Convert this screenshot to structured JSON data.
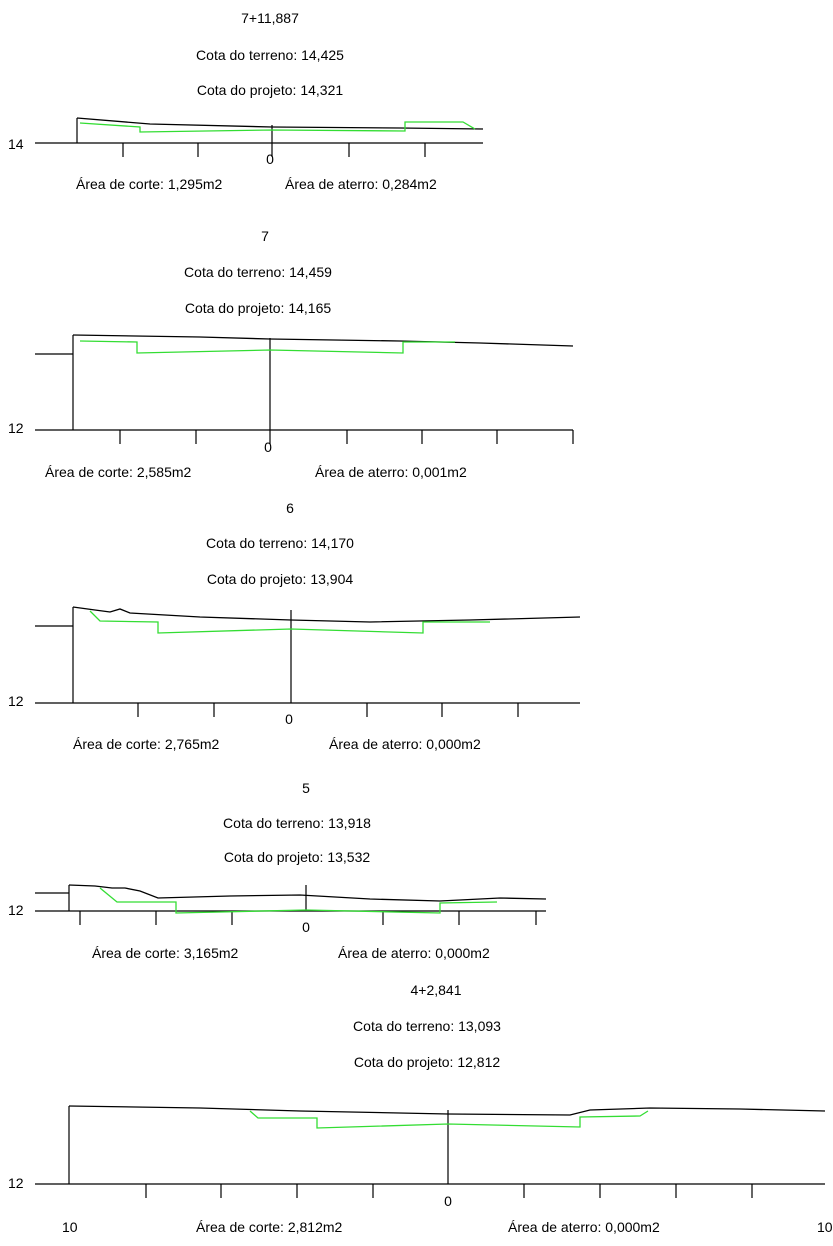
{
  "sections": [
    {
      "station": "7+11,887",
      "terrain_label": "Cota do terreno: 14,425",
      "design_label": "Cota do projeto: 14,321",
      "base_elevation": "14",
      "center_label": "0",
      "left_offset_label": "",
      "right_offset_label": "",
      "cut_area": "Área de corte: 1,295m2",
      "fill_area": "Área de aterro: 0,284m2"
    },
    {
      "station": "7",
      "terrain_label": "Cota do terreno: 14,459",
      "design_label": "Cota do projeto: 14,165",
      "base_elevation": "12",
      "center_label": "0",
      "left_offset_label": "",
      "right_offset_label": "",
      "cut_area": "Área de corte: 2,585m2",
      "fill_area": "Área de aterro: 0,001m2"
    },
    {
      "station": "6",
      "terrain_label": "Cota do terreno: 14,170",
      "design_label": "Cota do projeto: 13,904",
      "base_elevation": "12",
      "center_label": "0",
      "left_offset_label": "",
      "right_offset_label": "",
      "cut_area": "Área de corte: 2,765m2",
      "fill_area": "Área de aterro: 0,000m2"
    },
    {
      "station": "5",
      "terrain_label": "Cota do terreno: 13,918",
      "design_label": "Cota do projeto: 13,532",
      "base_elevation": "12",
      "center_label": "0",
      "left_offset_label": "",
      "right_offset_label": "",
      "cut_area": "Área de corte: 3,165m2",
      "fill_area": "Área de aterro: 0,000m2"
    },
    {
      "station": "4+2,841",
      "terrain_label": "Cota do terreno: 13,093",
      "design_label": "Cota do projeto: 12,812",
      "base_elevation": "12",
      "center_label": "0",
      "left_offset_label": "10",
      "right_offset_label": "10",
      "cut_area": "Área de corte: 2,812m2",
      "fill_area": "Área de aterro: 0,000m2"
    }
  ],
  "colors": {
    "terrain_line": "#000000",
    "design_line": "#33dd33",
    "background": "#ffffff"
  }
}
